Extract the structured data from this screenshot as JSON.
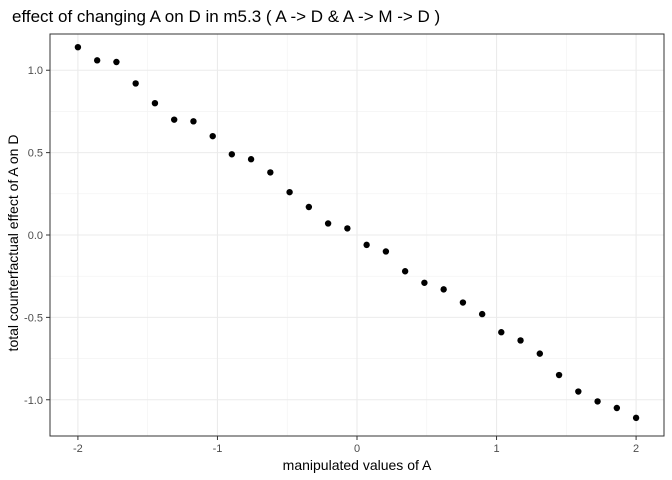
{
  "chart_data": {
    "type": "scatter",
    "title": "effect of changing A on D in m5.3 ( A -> D & A -> M -> D )",
    "xlabel": "manipulated values of A",
    "ylabel": "total counterfactual effect of A on D",
    "xlim": [
      -2.2,
      2.2
    ],
    "ylim": [
      -1.22,
      1.22
    ],
    "xticks": [
      -2,
      -1,
      0,
      1,
      2
    ],
    "xtick_labels": [
      "-2",
      "-1",
      "0",
      "1",
      "2"
    ],
    "yticks": [
      -1.0,
      -0.5,
      0.0,
      0.5,
      1.0
    ],
    "ytick_labels": [
      "-1.0",
      "-0.5",
      "0.0",
      "0.5",
      "1.0"
    ],
    "grid": true,
    "theme": "black-and-white with panel border",
    "point_color": "#000000",
    "points": [
      {
        "x": -2.0,
        "y": 1.14
      },
      {
        "x": -1.862,
        "y": 1.06
      },
      {
        "x": -1.724,
        "y": 1.05
      },
      {
        "x": -1.586,
        "y": 0.92
      },
      {
        "x": -1.448,
        "y": 0.8
      },
      {
        "x": -1.31,
        "y": 0.7
      },
      {
        "x": -1.172,
        "y": 0.69
      },
      {
        "x": -1.034,
        "y": 0.6
      },
      {
        "x": -0.897,
        "y": 0.49
      },
      {
        "x": -0.759,
        "y": 0.46
      },
      {
        "x": -0.621,
        "y": 0.38
      },
      {
        "x": -0.483,
        "y": 0.26
      },
      {
        "x": -0.345,
        "y": 0.17
      },
      {
        "x": -0.207,
        "y": 0.07
      },
      {
        "x": -0.069,
        "y": 0.04
      },
      {
        "x": 0.069,
        "y": -0.06
      },
      {
        "x": 0.207,
        "y": -0.1
      },
      {
        "x": 0.345,
        "y": -0.22
      },
      {
        "x": 0.483,
        "y": -0.29
      },
      {
        "x": 0.621,
        "y": -0.33
      },
      {
        "x": 0.759,
        "y": -0.41
      },
      {
        "x": 0.897,
        "y": -0.48
      },
      {
        "x": 1.034,
        "y": -0.59
      },
      {
        "x": 1.172,
        "y": -0.64
      },
      {
        "x": 1.31,
        "y": -0.72
      },
      {
        "x": 1.448,
        "y": -0.85
      },
      {
        "x": 1.586,
        "y": -0.95
      },
      {
        "x": 1.724,
        "y": -1.01
      },
      {
        "x": 1.862,
        "y": -1.05
      },
      {
        "x": 2.0,
        "y": -1.11
      }
    ]
  }
}
